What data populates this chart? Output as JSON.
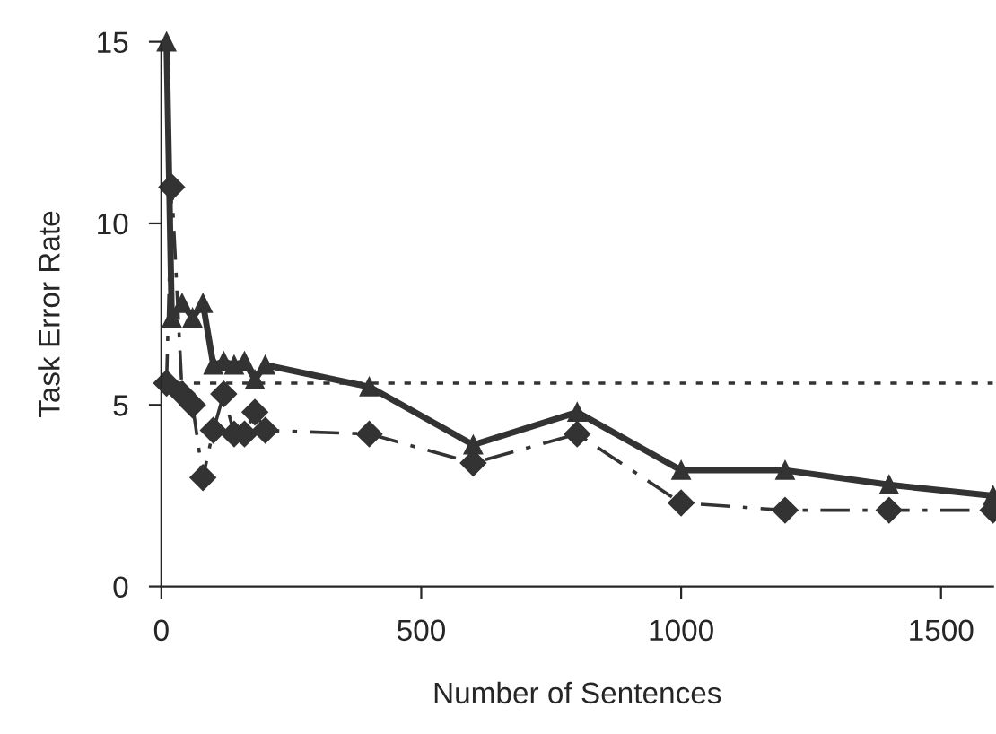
{
  "chart_data": {
    "type": "line",
    "xlabel": "Number of Sentences",
    "ylabel": "Task Error Rate",
    "series": [
      {
        "color": "#333333",
        "marker": "triangle",
        "line_style": "solid",
        "x": [
          10,
          20,
          40,
          60,
          80,
          100,
          120,
          140,
          160,
          180,
          200,
          400,
          600,
          800,
          1000,
          1200,
          1400,
          1600
        ],
        "values": [
          15,
          7.4,
          7.8,
          7.4,
          7.8,
          6.1,
          6.2,
          6.1,
          6.2,
          5.7,
          6.1,
          5.5,
          3.9,
          4.8,
          3.2,
          3.2,
          2.8,
          2.5
        ]
      },
      {
        "color": "#333333",
        "marker": "diamond",
        "line_style": "dashdot",
        "x": [
          10,
          20,
          40,
          60,
          80,
          100,
          120,
          140,
          160,
          180,
          200,
          400,
          600,
          800,
          1000,
          1200,
          1400,
          1600
        ],
        "values": [
          5.6,
          11,
          5.3,
          5.0,
          3.0,
          4.3,
          5.3,
          4.2,
          4.2,
          4.8,
          4.3,
          4.2,
          3.4,
          4.2,
          2.3,
          2.1,
          2.1,
          2.1
        ]
      }
    ],
    "ref_lines": [
      {
        "axis": "y",
        "value": 5.6,
        "color": "#333333",
        "line_style": "dotted"
      }
    ],
    "xlim": [
      0,
      1600
    ],
    "xticks": [
      0,
      500,
      1000,
      1500
    ],
    "ylim": [
      0,
      15
    ],
    "yticks": [
      0,
      5,
      10,
      15
    ],
    "grid": false,
    "legend": false
  }
}
